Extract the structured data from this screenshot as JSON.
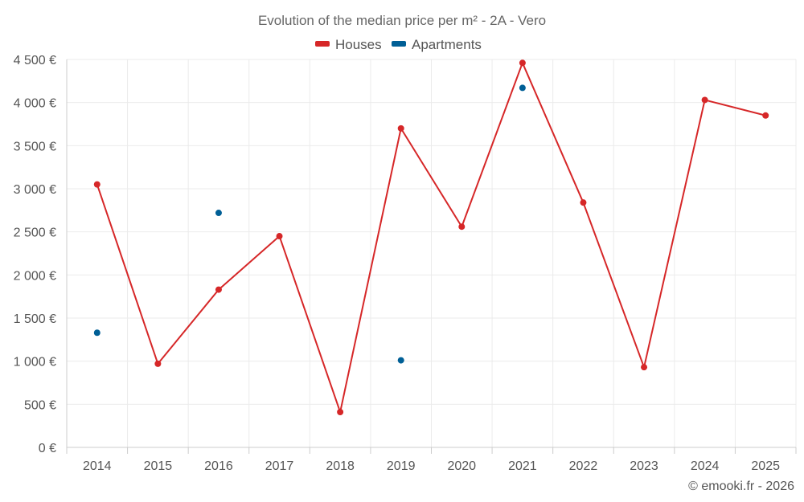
{
  "chart_data": {
    "type": "line",
    "title": "Evolution of the median price per m² - 2A - Vero",
    "categories": [
      "2014",
      "2015",
      "2016",
      "2017",
      "2018",
      "2019",
      "2020",
      "2021",
      "2022",
      "2023",
      "2024",
      "2025"
    ],
    "series": [
      {
        "name": "Houses",
        "color": "#d62728",
        "values": [
          3050,
          970,
          1830,
          2450,
          410,
          3700,
          2560,
          4460,
          2840,
          930,
          4030,
          3850
        ]
      },
      {
        "name": "Apartments",
        "color": "#005f96",
        "values": [
          1330,
          null,
          2720,
          null,
          null,
          1010,
          null,
          4170,
          null,
          null,
          null,
          null
        ]
      }
    ],
    "ylim": [
      0,
      4500
    ],
    "yticks": [
      0,
      500,
      1000,
      1500,
      2000,
      2500,
      3000,
      3500,
      4000,
      4500
    ],
    "ytick_labels": [
      "0 €",
      "500 €",
      "1 000 €",
      "1 500 €",
      "2 000 €",
      "2 500 €",
      "3 000 €",
      "3 500 €",
      "4 000 €",
      "4 500 €"
    ],
    "xlabel": "",
    "ylabel": "",
    "grid": true,
    "legend_position": "top-center"
  },
  "credit": "© emooki.fr - 2026"
}
